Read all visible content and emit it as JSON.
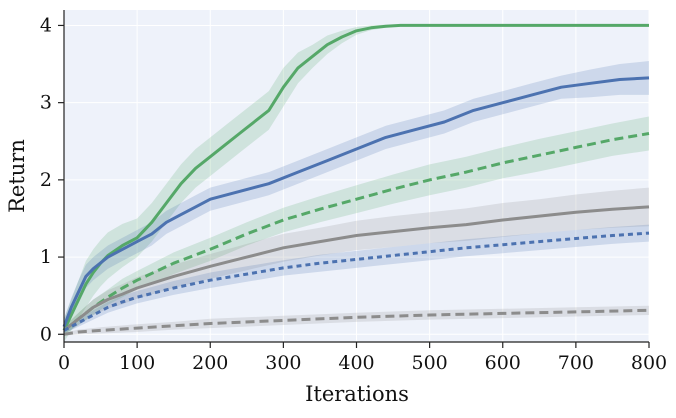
{
  "chart_data": {
    "type": "line",
    "title": "",
    "xlabel": "Iterations",
    "ylabel": "Return",
    "xlim": [
      0,
      800
    ],
    "ylim": [
      -0.1,
      4.2
    ],
    "xticks": [
      "0",
      "100",
      "200",
      "300",
      "400",
      "500",
      "600",
      "700",
      "800"
    ],
    "yticks": [
      "0",
      "1",
      "2",
      "3",
      "4"
    ],
    "grid": true,
    "legend": "none",
    "background_color": "#eef2fa",
    "grid_color": "#ffffff",
    "series": [
      {
        "style": "solid",
        "color": "#55a868",
        "x": [
          0,
          10,
          20,
          30,
          40,
          50,
          60,
          80,
          100,
          120,
          140,
          160,
          180,
          200,
          220,
          240,
          260,
          280,
          300,
          320,
          340,
          360,
          380,
          400,
          420,
          440,
          460,
          480,
          500,
          600,
          700,
          800
        ],
        "y": [
          0.05,
          0.25,
          0.45,
          0.65,
          0.8,
          0.92,
          1.02,
          1.15,
          1.25,
          1.45,
          1.7,
          1.95,
          2.15,
          2.3,
          2.45,
          2.6,
          2.75,
          2.9,
          3.2,
          3.45,
          3.6,
          3.75,
          3.85,
          3.93,
          3.97,
          3.99,
          4.0,
          4.0,
          4.0,
          4.0,
          4.0,
          4.0
        ],
        "band": [
          0.15,
          0.2,
          0.25,
          0.3,
          0.3,
          0.3,
          0.3,
          0.28,
          0.25,
          0.25,
          0.25,
          0.25,
          0.25,
          0.25,
          0.25,
          0.25,
          0.25,
          0.25,
          0.25,
          0.2,
          0.15,
          0.12,
          0.08,
          0.05,
          0.03,
          0.02,
          0.01,
          0.01,
          0.01,
          0.01,
          0.01,
          0.01
        ]
      },
      {
        "style": "solid",
        "color": "#4c72b0",
        "x": [
          0,
          10,
          20,
          30,
          40,
          60,
          80,
          100,
          120,
          140,
          160,
          180,
          200,
          240,
          280,
          320,
          360,
          400,
          440,
          480,
          520,
          560,
          600,
          640,
          680,
          720,
          760,
          800
        ],
        "y": [
          0.1,
          0.35,
          0.55,
          0.75,
          0.85,
          1.0,
          1.1,
          1.2,
          1.3,
          1.45,
          1.55,
          1.65,
          1.75,
          1.85,
          1.95,
          2.1,
          2.25,
          2.4,
          2.55,
          2.65,
          2.75,
          2.9,
          3.0,
          3.1,
          3.2,
          3.25,
          3.3,
          3.32
        ],
        "band": [
          0.1,
          0.12,
          0.15,
          0.15,
          0.15,
          0.15,
          0.15,
          0.15,
          0.15,
          0.15,
          0.15,
          0.15,
          0.15,
          0.15,
          0.15,
          0.15,
          0.15,
          0.15,
          0.15,
          0.15,
          0.15,
          0.15,
          0.15,
          0.15,
          0.15,
          0.18,
          0.2,
          0.22
        ]
      },
      {
        "style": "dashed",
        "color": "#55a868",
        "x": [
          0,
          20,
          40,
          60,
          80,
          100,
          150,
          200,
          250,
          300,
          350,
          400,
          450,
          500,
          550,
          600,
          650,
          700,
          750,
          800
        ],
        "y": [
          0.05,
          0.2,
          0.35,
          0.48,
          0.6,
          0.7,
          0.92,
          1.1,
          1.3,
          1.48,
          1.62,
          1.75,
          1.88,
          2.0,
          2.1,
          2.22,
          2.32,
          2.42,
          2.52,
          2.6
        ],
        "band": [
          0.05,
          0.08,
          0.1,
          0.1,
          0.12,
          0.12,
          0.14,
          0.15,
          0.15,
          0.16,
          0.17,
          0.18,
          0.19,
          0.2,
          0.2,
          0.2,
          0.21,
          0.21,
          0.21,
          0.22
        ]
      },
      {
        "style": "solid",
        "color": "#8c8c8c",
        "x": [
          0,
          20,
          40,
          60,
          80,
          100,
          150,
          200,
          250,
          300,
          350,
          400,
          450,
          500,
          550,
          600,
          650,
          700,
          750,
          800
        ],
        "y": [
          0.05,
          0.2,
          0.35,
          0.45,
          0.52,
          0.6,
          0.75,
          0.88,
          1.0,
          1.12,
          1.2,
          1.28,
          1.33,
          1.38,
          1.42,
          1.48,
          1.53,
          1.58,
          1.62,
          1.65
        ],
        "band": [
          0.05,
          0.08,
          0.1,
          0.12,
          0.13,
          0.14,
          0.15,
          0.16,
          0.17,
          0.18,
          0.18,
          0.19,
          0.2,
          0.2,
          0.21,
          0.22,
          0.22,
          0.23,
          0.24,
          0.25
        ]
      },
      {
        "style": "dotted",
        "color": "#4c72b0",
        "x": [
          0,
          20,
          40,
          60,
          80,
          100,
          150,
          200,
          250,
          300,
          350,
          400,
          450,
          500,
          550,
          600,
          650,
          700,
          750,
          800
        ],
        "y": [
          0.05,
          0.15,
          0.25,
          0.35,
          0.42,
          0.48,
          0.6,
          0.7,
          0.78,
          0.86,
          0.92,
          0.97,
          1.02,
          1.07,
          1.12,
          1.16,
          1.2,
          1.24,
          1.28,
          1.31
        ],
        "band": [
          0.04,
          0.05,
          0.06,
          0.07,
          0.08,
          0.08,
          0.09,
          0.1,
          0.1,
          0.1,
          0.11,
          0.11,
          0.11,
          0.11,
          0.11,
          0.11,
          0.11,
          0.11,
          0.11,
          0.11
        ]
      },
      {
        "style": "dashed",
        "color": "#8c8c8c",
        "x": [
          0,
          20,
          50,
          100,
          150,
          200,
          300,
          400,
          500,
          600,
          700,
          800
        ],
        "y": [
          0.0,
          0.03,
          0.05,
          0.08,
          0.11,
          0.14,
          0.18,
          0.22,
          0.25,
          0.27,
          0.29,
          0.31
        ],
        "band": [
          0.02,
          0.03,
          0.04,
          0.05,
          0.05,
          0.06,
          0.06,
          0.06,
          0.06,
          0.06,
          0.06,
          0.06
        ]
      }
    ]
  }
}
